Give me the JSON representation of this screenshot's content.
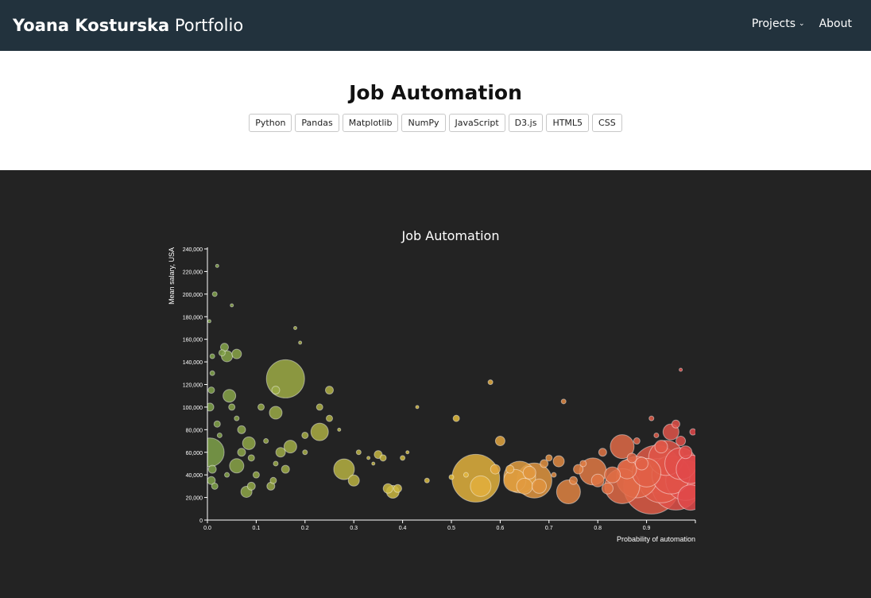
{
  "nav": {
    "brand_name": "Yoana Kosturska",
    "brand_sub": "Portfolio",
    "links": [
      "Projects",
      "About"
    ]
  },
  "page": {
    "title": "Job Automation",
    "tags": [
      "Python",
      "Pandas",
      "Matplotlib",
      "NumPy",
      "JavaScript",
      "D3.js",
      "HTML5",
      "CSS"
    ]
  },
  "colors": {
    "nav_bg": "#22323d",
    "viz_bg": "#232323",
    "low": "#7ea24a",
    "mid": "#e2bd3b",
    "high": "#e0474a"
  },
  "chart_data": {
    "type": "scatter",
    "title": "Job Automation",
    "xlabel": "Probability of automation",
    "ylabel": "Mean salary, USA",
    "xlim": [
      0,
      1
    ],
    "ylim": [
      0,
      240000
    ],
    "xticks": [
      "0.0",
      "0.1",
      "0.2",
      "0.3",
      "0.4",
      "0.5",
      "0.6",
      "0.7",
      "0.8",
      "0.9"
    ],
    "yticks": [
      "0",
      "20,000",
      "40,000",
      "60,000",
      "80,000",
      "100,000",
      "120,000",
      "140,000",
      "160,000",
      "180,000",
      "200,000",
      "220,000",
      "240,000"
    ],
    "grid": false,
    "size_encodes": "employment",
    "points": [
      [
        0.005,
        60000,
        18
      ],
      [
        0.005,
        100000,
        5
      ],
      [
        0.008,
        115000,
        4
      ],
      [
        0.01,
        130000,
        3
      ],
      [
        0.004,
        176000,
        2
      ],
      [
        0.015,
        200000,
        3
      ],
      [
        0.02,
        225000,
        2
      ],
      [
        0.01,
        145000,
        3
      ],
      [
        0.02,
        85000,
        4
      ],
      [
        0.025,
        75000,
        3
      ],
      [
        0.01,
        45000,
        5
      ],
      [
        0.008,
        35000,
        5
      ],
      [
        0.015,
        30000,
        4
      ],
      [
        0.03,
        148000,
        4
      ],
      [
        0.035,
        153000,
        5
      ],
      [
        0.04,
        145000,
        7
      ],
      [
        0.05,
        190000,
        2
      ],
      [
        0.06,
        147000,
        6
      ],
      [
        0.045,
        110000,
        8
      ],
      [
        0.05,
        100000,
        4
      ],
      [
        0.06,
        90000,
        3
      ],
      [
        0.07,
        80000,
        5
      ],
      [
        0.07,
        60000,
        5
      ],
      [
        0.06,
        48000,
        9
      ],
      [
        0.04,
        40000,
        3
      ],
      [
        0.08,
        25000,
        7
      ],
      [
        0.085,
        68000,
        8
      ],
      [
        0.09,
        55000,
        4
      ],
      [
        0.09,
        30000,
        5
      ],
      [
        0.1,
        40000,
        4
      ],
      [
        0.11,
        100000,
        4
      ],
      [
        0.12,
        70000,
        3
      ],
      [
        0.13,
        30000,
        5
      ],
      [
        0.135,
        35000,
        4
      ],
      [
        0.14,
        115000,
        5
      ],
      [
        0.14,
        95000,
        8
      ],
      [
        0.16,
        125000,
        24
      ],
      [
        0.15,
        60000,
        6
      ],
      [
        0.14,
        50000,
        3
      ],
      [
        0.16,
        45000,
        5
      ],
      [
        0.17,
        65000,
        8
      ],
      [
        0.18,
        170000,
        2
      ],
      [
        0.19,
        157000,
        2
      ],
      [
        0.2,
        75000,
        4
      ],
      [
        0.2,
        60000,
        3
      ],
      [
        0.23,
        78000,
        11
      ],
      [
        0.25,
        115000,
        5
      ],
      [
        0.25,
        90000,
        4
      ],
      [
        0.23,
        100000,
        4
      ],
      [
        0.27,
        80000,
        2
      ],
      [
        0.28,
        45000,
        13
      ],
      [
        0.3,
        35000,
        7
      ],
      [
        0.31,
        60000,
        3
      ],
      [
        0.33,
        55000,
        2
      ],
      [
        0.34,
        50000,
        2
      ],
      [
        0.35,
        58000,
        5
      ],
      [
        0.36,
        55000,
        4
      ],
      [
        0.37,
        28000,
        6
      ],
      [
        0.38,
        25000,
        8
      ],
      [
        0.39,
        28000,
        5
      ],
      [
        0.4,
        55000,
        3
      ],
      [
        0.41,
        60000,
        2
      ],
      [
        0.43,
        100000,
        2
      ],
      [
        0.45,
        35000,
        3
      ],
      [
        0.5,
        38000,
        3
      ],
      [
        0.51,
        90000,
        4
      ],
      [
        0.53,
        40000,
        3
      ],
      [
        0.55,
        37000,
        30
      ],
      [
        0.56,
        30000,
        13
      ],
      [
        0.58,
        122000,
        3
      ],
      [
        0.59,
        45000,
        6
      ],
      [
        0.6,
        70000,
        6
      ],
      [
        0.62,
        45000,
        5
      ],
      [
        0.63,
        35000,
        14
      ],
      [
        0.64,
        38000,
        20
      ],
      [
        0.65,
        30000,
        10
      ],
      [
        0.66,
        42000,
        8
      ],
      [
        0.67,
        35000,
        22
      ],
      [
        0.68,
        30000,
        9
      ],
      [
        0.69,
        50000,
        5
      ],
      [
        0.7,
        55000,
        4
      ],
      [
        0.71,
        40000,
        3
      ],
      [
        0.72,
        52000,
        7
      ],
      [
        0.73,
        105000,
        3
      ],
      [
        0.74,
        25000,
        15
      ],
      [
        0.75,
        35000,
        5
      ],
      [
        0.76,
        45000,
        6
      ],
      [
        0.77,
        50000,
        4
      ],
      [
        0.79,
        43000,
        17
      ],
      [
        0.8,
        35000,
        8
      ],
      [
        0.81,
        60000,
        5
      ],
      [
        0.82,
        28000,
        7
      ],
      [
        0.83,
        40000,
        10
      ],
      [
        0.85,
        65000,
        15
      ],
      [
        0.85,
        30000,
        22
      ],
      [
        0.86,
        45000,
        12
      ],
      [
        0.87,
        55000,
        6
      ],
      [
        0.88,
        38000,
        26
      ],
      [
        0.89,
        50000,
        8
      ],
      [
        0.9,
        42000,
        18
      ],
      [
        0.91,
        30000,
        35
      ],
      [
        0.92,
        45000,
        30
      ],
      [
        0.93,
        35000,
        28
      ],
      [
        0.94,
        55000,
        22
      ],
      [
        0.95,
        40000,
        24
      ],
      [
        0.96,
        30000,
        30
      ],
      [
        0.97,
        50000,
        20
      ],
      [
        0.98,
        35000,
        25
      ],
      [
        0.99,
        45000,
        18
      ],
      [
        0.95,
        78000,
        10
      ],
      [
        0.96,
        85000,
        5
      ],
      [
        0.97,
        70000,
        6
      ],
      [
        0.98,
        60000,
        8
      ],
      [
        0.99,
        20000,
        16
      ],
      [
        0.93,
        65000,
        8
      ],
      [
        0.97,
        133000,
        2
      ],
      [
        0.91,
        90000,
        3
      ],
      [
        0.88,
        70000,
        4
      ],
      [
        0.92,
        75000,
        3
      ],
      [
        0.995,
        78000,
        4
      ]
    ]
  }
}
